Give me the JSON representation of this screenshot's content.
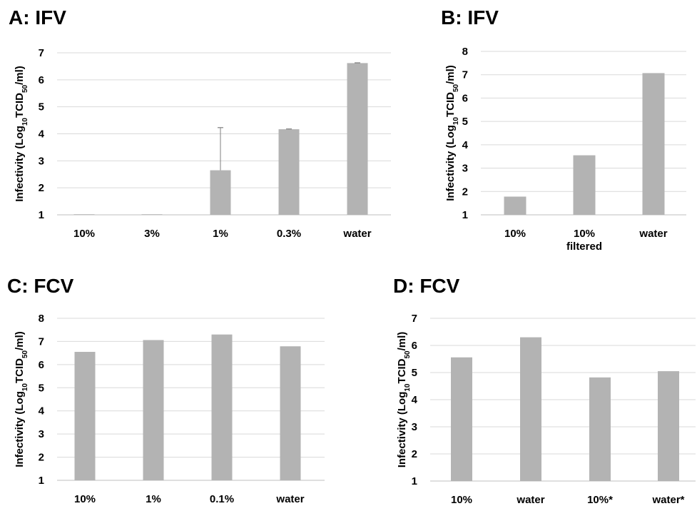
{
  "style": {
    "bar_color": "#b3b3b3",
    "grid_color": "#d9d9d9",
    "axis_color": "#bfbfbf",
    "error_bar_color": "#7f7f7f"
  },
  "chart_data": [
    {
      "panel": "A",
      "type": "bar",
      "title": "A: IFV",
      "ylabel": "Infectivity (Log10TCID50/ml)",
      "ylabel_parts": [
        "Infectivity (Log",
        "10",
        "TCID",
        "50",
        "/ml)"
      ],
      "categories": [
        [
          "10%"
        ],
        [
          "3%"
        ],
        [
          "1%"
        ],
        [
          "0.3%"
        ],
        [
          "water"
        ]
      ],
      "values": [
        1.0,
        1.0,
        2.65,
        4.17,
        6.62
      ],
      "error_upper": [
        null,
        null,
        4.23,
        4.18,
        6.63
      ],
      "ylim": [
        1,
        7
      ],
      "yticks": [
        1,
        2,
        3,
        4,
        5,
        6,
        7
      ],
      "grid": true,
      "legend": "none"
    },
    {
      "panel": "B",
      "type": "bar",
      "title": "B: IFV",
      "ylabel": "Infectivity (Log10TCID50/ml)",
      "ylabel_parts": [
        "Infectivity (Log",
        "10",
        "TCID",
        "50",
        "/ml)"
      ],
      "categories": [
        [
          "10%"
        ],
        [
          "10%",
          "filtered"
        ],
        [
          "water"
        ]
      ],
      "values": [
        1.78,
        3.55,
        7.07
      ],
      "error_upper": [
        null,
        null,
        null
      ],
      "ylim": [
        1,
        8
      ],
      "yticks": [
        1,
        2,
        3,
        4,
        5,
        6,
        7,
        8
      ],
      "grid": true,
      "legend": "none"
    },
    {
      "panel": "C",
      "type": "bar",
      "title": "C: FCV",
      "ylabel": "Infectivity (Log10TCID50/ml)",
      "ylabel_parts": [
        "Infectivity (Log",
        "10",
        "TCID",
        "50",
        "/ml)"
      ],
      "categories": [
        [
          "10%"
        ],
        [
          "1%"
        ],
        [
          "0.1%"
        ],
        [
          "water"
        ]
      ],
      "values": [
        6.55,
        7.06,
        7.3,
        6.79
      ],
      "error_upper": [
        null,
        null,
        null,
        null
      ],
      "ylim": [
        1,
        8
      ],
      "yticks": [
        1,
        2,
        3,
        4,
        5,
        6,
        7,
        8
      ],
      "grid": true,
      "legend": "none"
    },
    {
      "panel": "D",
      "type": "bar",
      "title": "D: FCV",
      "ylabel": "Infectivity (Log10TCID50/ml)",
      "ylabel_parts": [
        "Infectivity (Log",
        "10",
        "TCID",
        "50",
        "/ml)"
      ],
      "categories": [
        [
          "10%"
        ],
        [
          "water"
        ],
        [
          "10%*"
        ],
        [
          "water*"
        ]
      ],
      "values": [
        5.56,
        6.3,
        4.82,
        5.05
      ],
      "error_upper": [
        null,
        null,
        null,
        null
      ],
      "ylim": [
        1,
        7
      ],
      "yticks": [
        1,
        2,
        3,
        4,
        5,
        6,
        7
      ],
      "grid": true,
      "legend": "none"
    }
  ]
}
